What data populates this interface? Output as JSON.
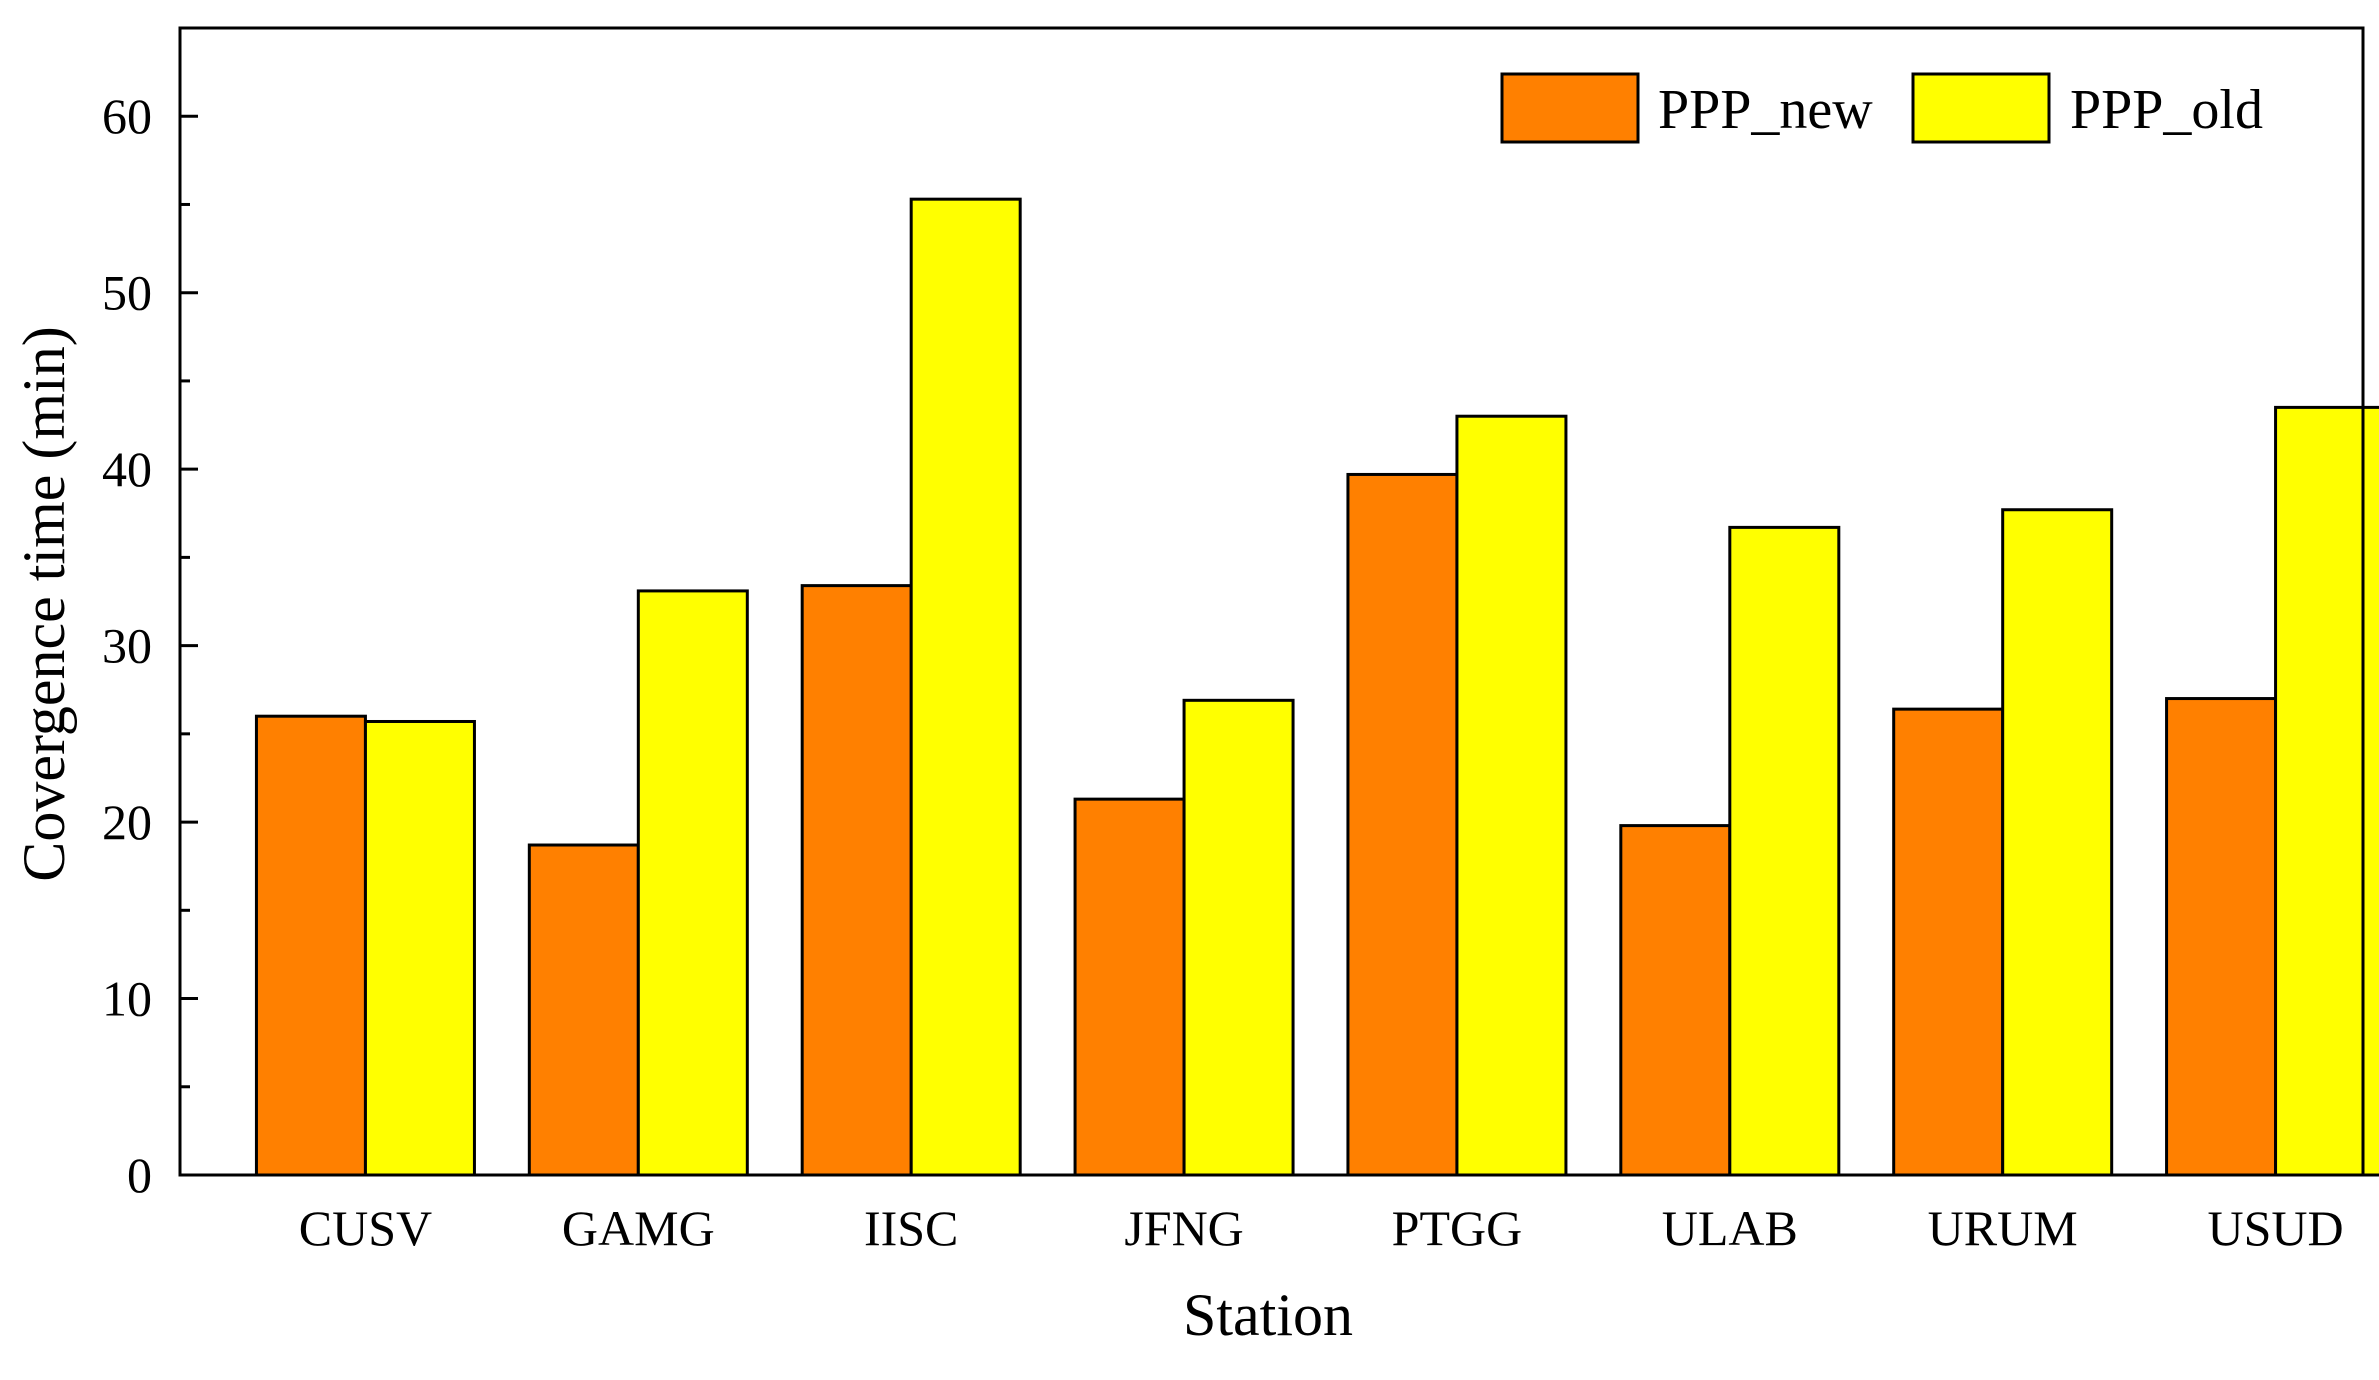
{
  "chart_data": {
    "type": "bar",
    "title": "",
    "xlabel": "Station",
    "ylabel": "Covergence time (min)",
    "ylim": [
      0,
      65
    ],
    "yticks": [
      0,
      10,
      20,
      30,
      40,
      50,
      60
    ],
    "categories": [
      "CUSV",
      "GAMG",
      "IISC",
      "JFNG",
      "PTGG",
      "ULAB",
      "URUM",
      "USUD"
    ],
    "series": [
      {
        "name": "PPP_new",
        "color": "#ff8000",
        "values": [
          26.0,
          18.7,
          33.4,
          21.3,
          39.7,
          19.8,
          26.4,
          27.0
        ]
      },
      {
        "name": "PPP_old",
        "color": "#ffff00",
        "values": [
          25.7,
          33.1,
          55.3,
          26.9,
          43.0,
          36.7,
          37.7,
          43.5
        ]
      }
    ],
    "legend_position": "top-right",
    "grid": false
  }
}
